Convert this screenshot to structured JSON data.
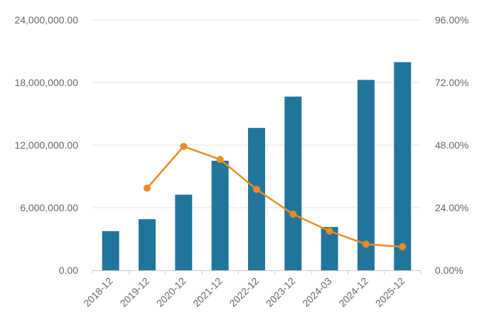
{
  "chart_data": {
    "type": "bar",
    "title": "",
    "xlabel": "",
    "ylabel": "",
    "categories": [
      "2018-12",
      "2019-12",
      "2020-12",
      "2021-12",
      "2022-12",
      "2023-12",
      "2024-03",
      "2024-12",
      "2025-12"
    ],
    "series": [
      {
        "type": "bar",
        "axis": "left",
        "color": "#21759b",
        "values": [
          3750000,
          4900000,
          7250000,
          10500000,
          13650000,
          16650000,
          4150000,
          18250000,
          19950000
        ]
      },
      {
        "type": "line",
        "axis": "right",
        "color": "#ed8a24",
        "values": [
          null,
          0.315,
          0.475,
          0.425,
          0.31,
          0.215,
          0.15,
          0.1,
          0.09
        ]
      }
    ],
    "ylim": [
      0,
      24000000
    ],
    "y2lim": [
      0,
      0.96
    ],
    "yticks": [
      "0.00",
      "6,000,000.00",
      "12,000,000.00",
      "18,000,000.00",
      "24,000,000.00"
    ],
    "y2ticks": [
      "0.00%",
      "24.00%",
      "48.00%",
      "72.00%",
      "96.00%"
    ],
    "grid": true,
    "legend": "none",
    "colors": {
      "bar": "#21759b",
      "line": "#ed8a24",
      "grid": "#e6e6e6",
      "axis": "#cccccc",
      "text": "#666666"
    }
  }
}
